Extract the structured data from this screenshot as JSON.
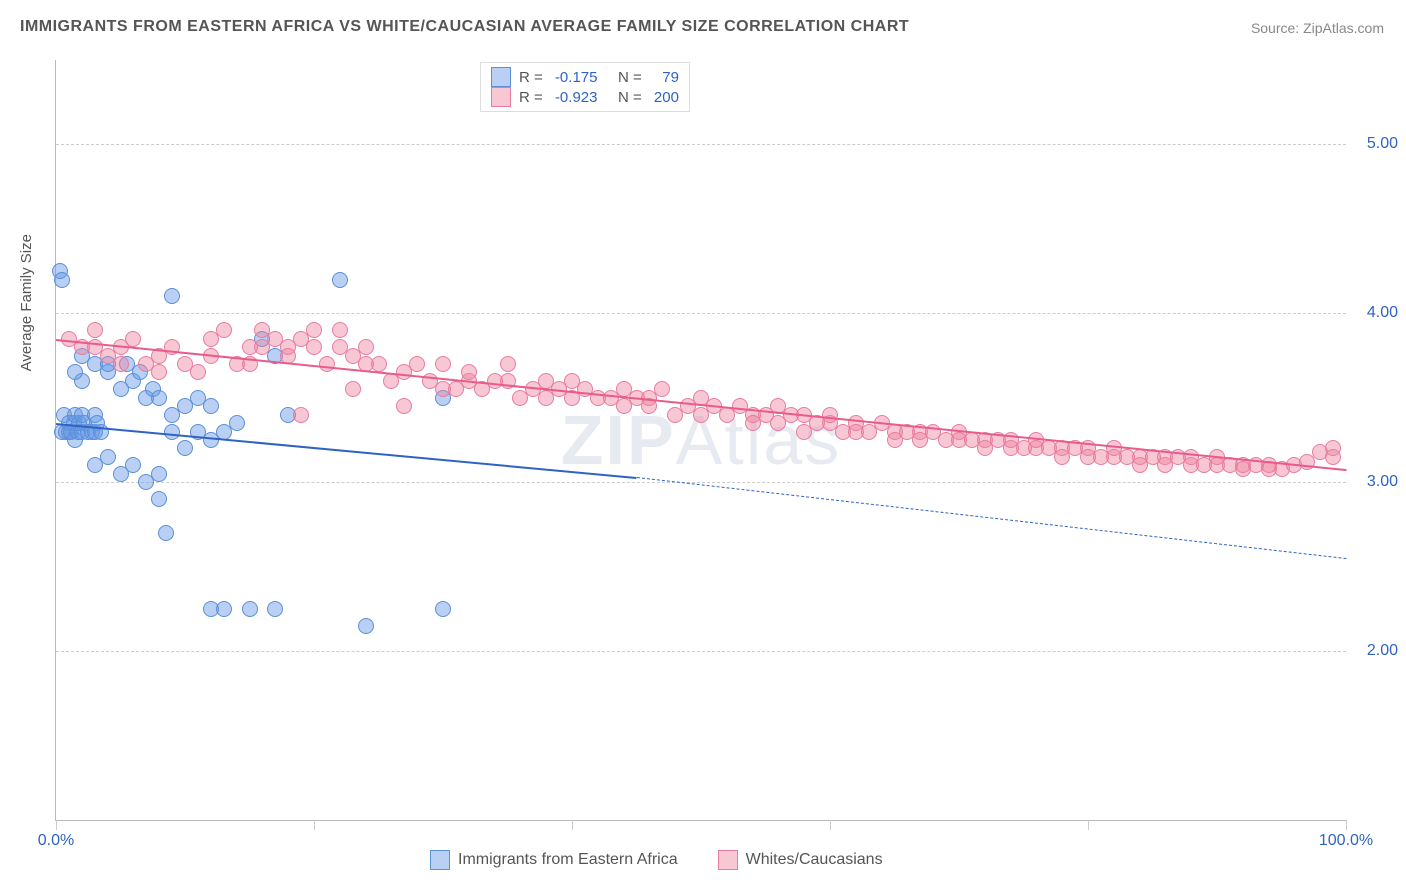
{
  "title": "IMMIGRANTS FROM EASTERN AFRICA VS WHITE/CAUCASIAN AVERAGE FAMILY SIZE CORRELATION CHART",
  "source": "Source: ZipAtlas.com",
  "ylabel": "Average Family Size",
  "watermark_bold": "ZIP",
  "watermark_rest": "Atlas",
  "chart": {
    "type": "scatter",
    "xlim": [
      0,
      100
    ],
    "ylim": [
      1.0,
      5.5
    ],
    "yticks": [
      2.0,
      3.0,
      4.0,
      5.0
    ],
    "ytick_labels": [
      "2.00",
      "3.00",
      "4.00",
      "5.00"
    ],
    "xgrid_ticks": [
      0,
      20,
      40,
      60,
      80,
      100
    ],
    "xtick_left": "0.0%",
    "xtick_right": "100.0%",
    "background_color": "#ffffff",
    "grid_color": "#cccccc",
    "tick_color": "#2f63c3",
    "marker_radius": 8,
    "marker_opacity": 0.45,
    "series": [
      {
        "id": "blue",
        "label": "Immigrants from Eastern Africa",
        "color_fill": "rgba(100,150,230,0.45)",
        "color_stroke": "#5b8fd6",
        "r_label": "R = ",
        "r_value": "-0.175",
        "n_label": "   N = ",
        "n_value": "  79",
        "trend": {
          "x1": 0,
          "y1": 3.35,
          "x2_solid": 45,
          "y2_solid": 3.03,
          "x2": 100,
          "y2": 2.55,
          "color": "#2f63c3",
          "width": 2
        },
        "points": [
          [
            0.5,
            3.3
          ],
          [
            0.6,
            3.4
          ],
          [
            0.8,
            3.3
          ],
          [
            1,
            3.35
          ],
          [
            1,
            3.3
          ],
          [
            1.2,
            3.3
          ],
          [
            1.4,
            3.35
          ],
          [
            1.5,
            3.4
          ],
          [
            1.5,
            3.25
          ],
          [
            1.7,
            3.3
          ],
          [
            1.8,
            3.35
          ],
          [
            2,
            3.3
          ],
          [
            2,
            3.4
          ],
          [
            2.2,
            3.35
          ],
          [
            2.5,
            3.3
          ],
          [
            2.8,
            3.3
          ],
          [
            3,
            3.4
          ],
          [
            3,
            3.3
          ],
          [
            3.2,
            3.35
          ],
          [
            3.5,
            3.3
          ],
          [
            2,
            3.75
          ],
          [
            3,
            3.7
          ],
          [
            2,
            3.6
          ],
          [
            1.5,
            3.65
          ],
          [
            4,
            3.65
          ],
          [
            4,
            3.7
          ],
          [
            5,
            3.55
          ],
          [
            5.5,
            3.7
          ],
          [
            6,
            3.6
          ],
          [
            6.5,
            3.65
          ],
          [
            7,
            3.5
          ],
          [
            7.5,
            3.55
          ],
          [
            8,
            3.5
          ],
          [
            9,
            3.4
          ],
          [
            10,
            3.45
          ],
          [
            11,
            3.5
          ],
          [
            12,
            3.45
          ],
          [
            3,
            3.1
          ],
          [
            4,
            3.15
          ],
          [
            5,
            3.05
          ],
          [
            6,
            3.1
          ],
          [
            7,
            3.0
          ],
          [
            8,
            3.05
          ],
          [
            9,
            3.3
          ],
          [
            10,
            3.2
          ],
          [
            11,
            3.3
          ],
          [
            12,
            3.25
          ],
          [
            13,
            3.3
          ],
          [
            14,
            3.35
          ],
          [
            16,
            3.85
          ],
          [
            17,
            3.75
          ],
          [
            18,
            3.4
          ],
          [
            9,
            4.1
          ],
          [
            22,
            4.2
          ],
          [
            30,
            3.5
          ],
          [
            8,
            2.9
          ],
          [
            8.5,
            2.7
          ],
          [
            12,
            2.25
          ],
          [
            13,
            2.25
          ],
          [
            15,
            2.25
          ],
          [
            17,
            2.25
          ],
          [
            24,
            2.15
          ],
          [
            30,
            2.25
          ],
          [
            0.3,
            4.25
          ],
          [
            0.5,
            4.2
          ]
        ]
      },
      {
        "id": "pink",
        "label": "Whites/Caucasians",
        "color_fill": "rgba(240,130,160,0.45)",
        "color_stroke": "#e77ca0",
        "r_label": "R = ",
        "r_value": "-0.923",
        "n_label": "   N = ",
        "n_value": "200",
        "trend": {
          "x1": 0,
          "y1": 3.85,
          "x2_solid": 100,
          "y2_solid": 3.08,
          "x2": 100,
          "y2": 3.08,
          "color": "#e85b8a",
          "width": 2
        },
        "points": [
          [
            1,
            3.85
          ],
          [
            2,
            3.8
          ],
          [
            3,
            3.8
          ],
          [
            3,
            3.9
          ],
          [
            4,
            3.75
          ],
          [
            5,
            3.8
          ],
          [
            5,
            3.7
          ],
          [
            6,
            3.85
          ],
          [
            7,
            3.7
          ],
          [
            8,
            3.75
          ],
          [
            8,
            3.65
          ],
          [
            9,
            3.8
          ],
          [
            10,
            3.7
          ],
          [
            11,
            3.65
          ],
          [
            12,
            3.75
          ],
          [
            12,
            3.85
          ],
          [
            13,
            3.9
          ],
          [
            14,
            3.7
          ],
          [
            15,
            3.8
          ],
          [
            15,
            3.7
          ],
          [
            16,
            3.8
          ],
          [
            16,
            3.9
          ],
          [
            17,
            3.85
          ],
          [
            18,
            3.8
          ],
          [
            18,
            3.75
          ],
          [
            19,
            3.85
          ],
          [
            20,
            3.9
          ],
          [
            20,
            3.8
          ],
          [
            21,
            3.7
          ],
          [
            22,
            3.8
          ],
          [
            22,
            3.9
          ],
          [
            23,
            3.75
          ],
          [
            24,
            3.8
          ],
          [
            24,
            3.7
          ],
          [
            25,
            3.7
          ],
          [
            26,
            3.6
          ],
          [
            27,
            3.65
          ],
          [
            28,
            3.7
          ],
          [
            29,
            3.6
          ],
          [
            30,
            3.55
          ],
          [
            19,
            3.4
          ],
          [
            23,
            3.55
          ],
          [
            27,
            3.45
          ],
          [
            30,
            3.7
          ],
          [
            31,
            3.55
          ],
          [
            32,
            3.6
          ],
          [
            32,
            3.65
          ],
          [
            33,
            3.55
          ],
          [
            34,
            3.6
          ],
          [
            35,
            3.6
          ],
          [
            35,
            3.7
          ],
          [
            36,
            3.5
          ],
          [
            37,
            3.55
          ],
          [
            38,
            3.6
          ],
          [
            38,
            3.5
          ],
          [
            39,
            3.55
          ],
          [
            40,
            3.6
          ],
          [
            40,
            3.5
          ],
          [
            41,
            3.55
          ],
          [
            42,
            3.5
          ],
          [
            43,
            3.5
          ],
          [
            44,
            3.45
          ],
          [
            44,
            3.55
          ],
          [
            45,
            3.5
          ],
          [
            46,
            3.5
          ],
          [
            46,
            3.45
          ],
          [
            47,
            3.55
          ],
          [
            48,
            3.4
          ],
          [
            49,
            3.45
          ],
          [
            50,
            3.5
          ],
          [
            50,
            3.4
          ],
          [
            51,
            3.45
          ],
          [
            52,
            3.4
          ],
          [
            53,
            3.45
          ],
          [
            54,
            3.4
          ],
          [
            54,
            3.35
          ],
          [
            55,
            3.4
          ],
          [
            56,
            3.35
          ],
          [
            56,
            3.45
          ],
          [
            57,
            3.4
          ],
          [
            58,
            3.4
          ],
          [
            58,
            3.3
          ],
          [
            59,
            3.35
          ],
          [
            60,
            3.35
          ],
          [
            60,
            3.4
          ],
          [
            61,
            3.3
          ],
          [
            62,
            3.35
          ],
          [
            62,
            3.3
          ],
          [
            63,
            3.3
          ],
          [
            64,
            3.35
          ],
          [
            65,
            3.3
          ],
          [
            65,
            3.25
          ],
          [
            66,
            3.3
          ],
          [
            67,
            3.3
          ],
          [
            67,
            3.25
          ],
          [
            68,
            3.3
          ],
          [
            69,
            3.25
          ],
          [
            70,
            3.3
          ],
          [
            70,
            3.25
          ],
          [
            71,
            3.25
          ],
          [
            72,
            3.25
          ],
          [
            72,
            3.2
          ],
          [
            73,
            3.25
          ],
          [
            74,
            3.2
          ],
          [
            74,
            3.25
          ],
          [
            75,
            3.2
          ],
          [
            76,
            3.2
          ],
          [
            76,
            3.25
          ],
          [
            77,
            3.2
          ],
          [
            78,
            3.2
          ],
          [
            78,
            3.15
          ],
          [
            79,
            3.2
          ],
          [
            80,
            3.2
          ],
          [
            80,
            3.15
          ],
          [
            81,
            3.15
          ],
          [
            82,
            3.15
          ],
          [
            82,
            3.2
          ],
          [
            83,
            3.15
          ],
          [
            84,
            3.15
          ],
          [
            84,
            3.1
          ],
          [
            85,
            3.15
          ],
          [
            86,
            3.15
          ],
          [
            86,
            3.1
          ],
          [
            87,
            3.15
          ],
          [
            88,
            3.1
          ],
          [
            88,
            3.15
          ],
          [
            89,
            3.1
          ],
          [
            90,
            3.1
          ],
          [
            90,
            3.15
          ],
          [
            91,
            3.1
          ],
          [
            92,
            3.1
          ],
          [
            92,
            3.08
          ],
          [
            93,
            3.1
          ],
          [
            94,
            3.1
          ],
          [
            94,
            3.08
          ],
          [
            95,
            3.08
          ],
          [
            96,
            3.1
          ],
          [
            97,
            3.12
          ],
          [
            98,
            3.18
          ],
          [
            99,
            3.2
          ],
          [
            99,
            3.15
          ]
        ]
      }
    ]
  }
}
